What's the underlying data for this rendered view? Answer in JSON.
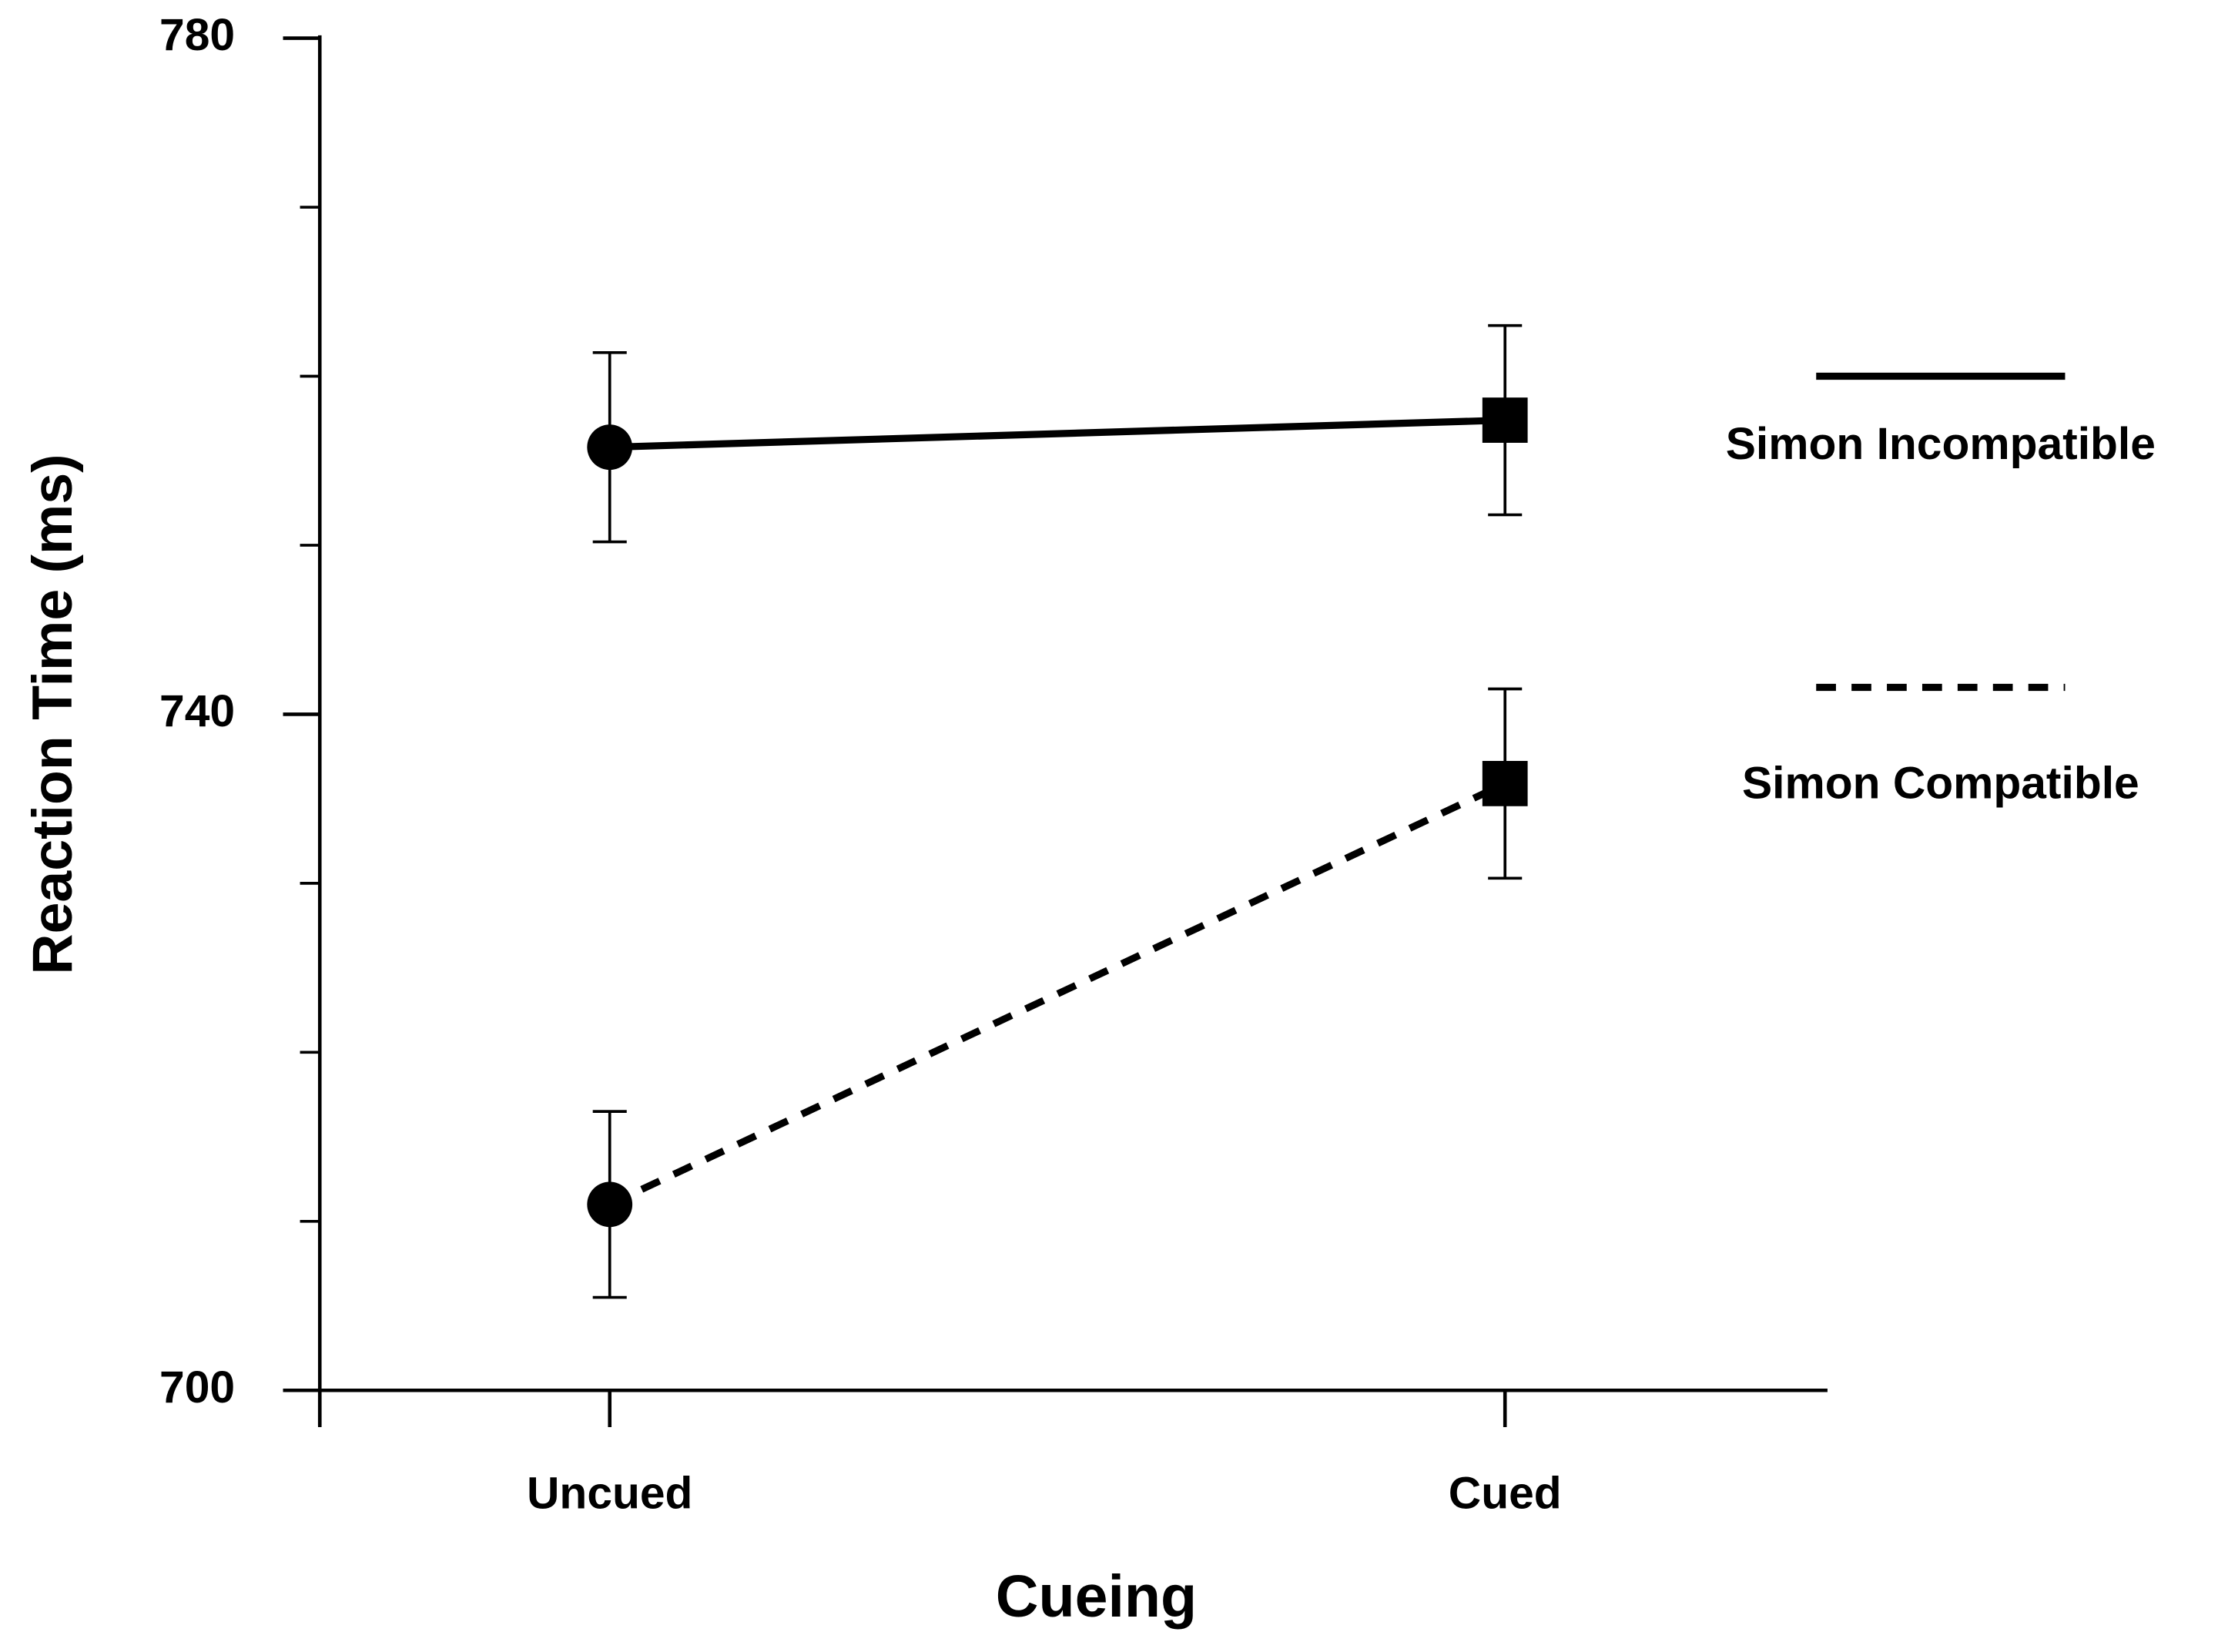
{
  "chart_data": {
    "type": "line",
    "x_label": "Cueing",
    "y_label": "Reaction Time (ms)",
    "categories": [
      "Uncued",
      "Cued"
    ],
    "markers": [
      "circle",
      "square"
    ],
    "series": [
      {
        "name": "Simon Incompatible",
        "color": "#000000",
        "dash": "solid",
        "values": [
          755.8,
          757.4
        ],
        "errors": [
          5.6,
          5.6
        ]
      },
      {
        "name": "Simon Compatible",
        "color": "#000000",
        "dash": "dashed",
        "values": [
          711.0,
          735.9
        ],
        "errors": [
          5.5,
          5.6
        ]
      }
    ],
    "ylim": [
      700,
      780
    ],
    "yticks": [
      700,
      740,
      780
    ],
    "minor_yticks": [
      710,
      720,
      730,
      750,
      760,
      770
    ],
    "grid": false,
    "legend": "right"
  }
}
